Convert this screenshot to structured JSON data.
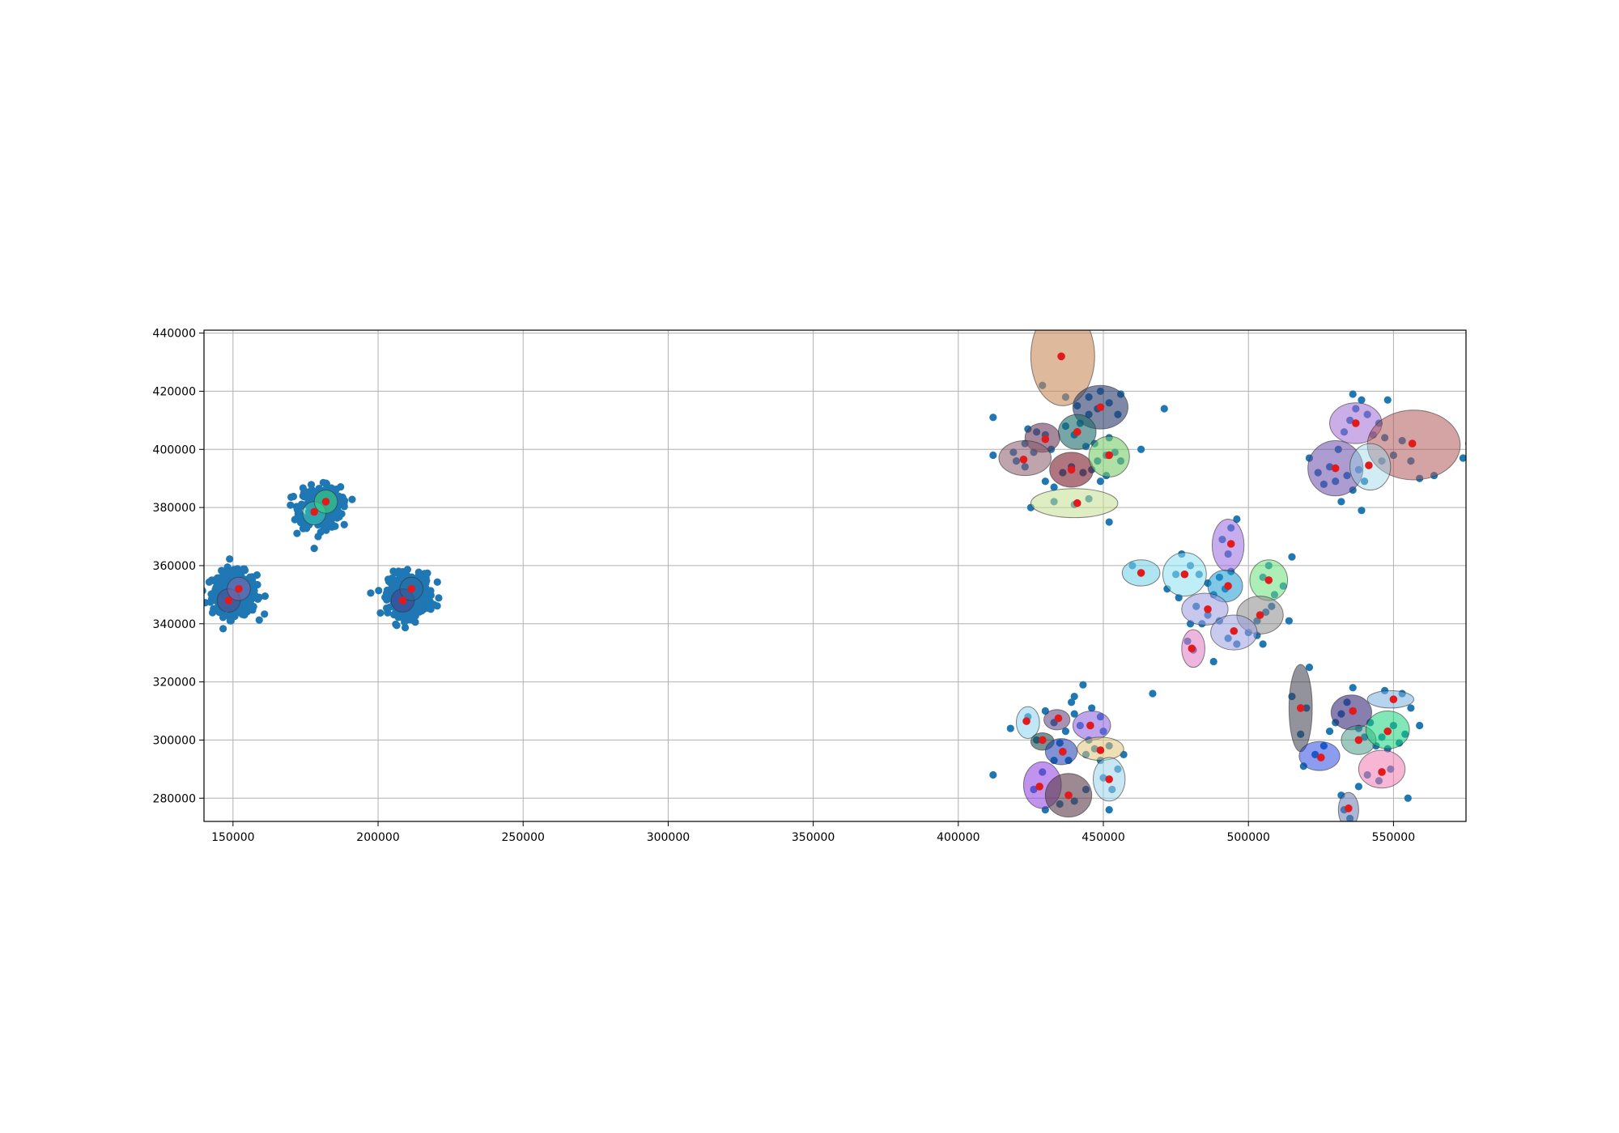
{
  "chart_data": {
    "type": "scatter",
    "title": "",
    "xlabel": "",
    "ylabel": "",
    "xlim": [
      140000,
      575000
    ],
    "ylim": [
      272000,
      441000
    ],
    "grid": true,
    "x_ticks": [
      150000,
      200000,
      250000,
      300000,
      350000,
      400000,
      450000,
      500000,
      550000
    ],
    "y_ticks": [
      280000,
      300000,
      320000,
      340000,
      360000,
      380000,
      400000,
      420000,
      440000
    ],
    "x_tick_labels": [
      "150000",
      "200000",
      "250000",
      "300000",
      "350000",
      "400000",
      "450000",
      "500000",
      "550000"
    ],
    "y_tick_labels": [
      "280000",
      "300000",
      "320000",
      "340000",
      "360000",
      "380000",
      "400000",
      "420000",
      "440000"
    ],
    "point_color": "#1f77b4",
    "center_color": "#e31a1c",
    "dense_clusters": [
      {
        "cx": 150500,
        "cy": 350500,
        "sx": 3800,
        "sy": 3600,
        "n": 420
      },
      {
        "cx": 180000,
        "cy": 380000,
        "sx": 3500,
        "sy": 3500,
        "n": 380
      },
      {
        "cx": 211000,
        "cy": 350000,
        "sx": 3600,
        "sy": 3600,
        "n": 400
      }
    ],
    "scatter_points": [
      [
        412000,
        411000
      ],
      [
        412000,
        398000
      ],
      [
        423000,
        402000
      ],
      [
        424000,
        407000
      ],
      [
        427000,
        406000
      ],
      [
        430000,
        405000
      ],
      [
        432000,
        400000
      ],
      [
        426000,
        399000
      ],
      [
        420000,
        396000
      ],
      [
        423000,
        394000
      ],
      [
        419000,
        399000
      ],
      [
        425000,
        380000
      ],
      [
        430000,
        389000
      ],
      [
        433000,
        387000
      ],
      [
        436000,
        392000
      ],
      [
        439000,
        394000
      ],
      [
        443000,
        392000
      ],
      [
        446000,
        393000
      ],
      [
        449000,
        389000
      ],
      [
        451000,
        391000
      ],
      [
        448000,
        396000
      ],
      [
        451000,
        398000
      ],
      [
        454000,
        399000
      ],
      [
        456000,
        396000
      ],
      [
        452000,
        404000
      ],
      [
        447000,
        402000
      ],
      [
        444000,
        401000
      ],
      [
        440000,
        405000
      ],
      [
        437000,
        408000
      ],
      [
        442000,
        409000
      ],
      [
        445000,
        412000
      ],
      [
        448000,
        414000
      ],
      [
        452000,
        416000
      ],
      [
        455000,
        412000
      ],
      [
        456000,
        419000
      ],
      [
        449000,
        420000
      ],
      [
        445000,
        418000
      ],
      [
        441000,
        415000
      ],
      [
        463000,
        400000
      ],
      [
        471000,
        414000
      ],
      [
        429000,
        422000
      ],
      [
        437000,
        418000
      ],
      [
        452000,
        375000
      ],
      [
        445000,
        383000
      ],
      [
        440000,
        381000
      ],
      [
        433000,
        382000
      ],
      [
        475000,
        357000
      ],
      [
        477000,
        364000
      ],
      [
        472000,
        352000
      ],
      [
        480000,
        360000
      ],
      [
        483000,
        357000
      ],
      [
        476000,
        349000
      ],
      [
        486000,
        354000
      ],
      [
        488000,
        350000
      ],
      [
        490000,
        356000
      ],
      [
        492000,
        352000
      ],
      [
        494000,
        358000
      ],
      [
        491000,
        369000
      ],
      [
        494000,
        373000
      ],
      [
        496000,
        376000
      ],
      [
        493000,
        364000
      ],
      [
        482000,
        346000
      ],
      [
        486000,
        343000
      ],
      [
        480000,
        340000
      ],
      [
        484000,
        340000
      ],
      [
        490000,
        341000
      ],
      [
        493000,
        335000
      ],
      [
        496000,
        333000
      ],
      [
        500000,
        337000
      ],
      [
        503000,
        341000
      ],
      [
        506000,
        344000
      ],
      [
        508000,
        346000
      ],
      [
        505000,
        333000
      ],
      [
        503000,
        336000
      ],
      [
        509000,
        350000
      ],
      [
        505000,
        356000
      ],
      [
        507000,
        360000
      ],
      [
        512000,
        353000
      ],
      [
        514000,
        341000
      ],
      [
        515000,
        363000
      ],
      [
        488000,
        327000
      ],
      [
        481000,
        331000
      ],
      [
        479000,
        334000
      ],
      [
        467000,
        316000
      ],
      [
        460000,
        360000
      ],
      [
        521000,
        397000
      ],
      [
        524000,
        392000
      ],
      [
        526000,
        388000
      ],
      [
        528000,
        394000
      ],
      [
        530000,
        389000
      ],
      [
        532000,
        382000
      ],
      [
        534000,
        391000
      ],
      [
        536000,
        386000
      ],
      [
        538000,
        393000
      ],
      [
        540000,
        389000
      ],
      [
        539000,
        379000
      ],
      [
        531000,
        400000
      ],
      [
        533000,
        406000
      ],
      [
        535000,
        410000
      ],
      [
        537000,
        414000
      ],
      [
        539000,
        417000
      ],
      [
        541000,
        412000
      ],
      [
        543000,
        405000
      ],
      [
        545000,
        409000
      ],
      [
        547000,
        404000
      ],
      [
        550000,
        398000
      ],
      [
        553000,
        403000
      ],
      [
        556000,
        396000
      ],
      [
        559000,
        390000
      ],
      [
        564000,
        391000
      ],
      [
        548000,
        417000
      ],
      [
        536000,
        419000
      ],
      [
        546000,
        396000
      ],
      [
        574000,
        397000
      ],
      [
        576000,
        402000
      ],
      [
        418000,
        304000
      ],
      [
        424000,
        308000
      ],
      [
        427000,
        300000
      ],
      [
        430000,
        310000
      ],
      [
        433000,
        306000
      ],
      [
        435000,
        299000
      ],
      [
        437000,
        303000
      ],
      [
        440000,
        309000
      ],
      [
        442000,
        305000
      ],
      [
        445000,
        300000
      ],
      [
        447000,
        297000
      ],
      [
        450000,
        303000
      ],
      [
        452000,
        298000
      ],
      [
        449000,
        293000
      ],
      [
        444000,
        295000
      ],
      [
        438000,
        293000
      ],
      [
        433000,
        293000
      ],
      [
        429000,
        289000
      ],
      [
        426000,
        283000
      ],
      [
        430000,
        276000
      ],
      [
        435000,
        278000
      ],
      [
        440000,
        279000
      ],
      [
        444000,
        283000
      ],
      [
        450000,
        287000
      ],
      [
        453000,
        283000
      ],
      [
        455000,
        290000
      ],
      [
        452000,
        276000
      ],
      [
        443000,
        319000
      ],
      [
        439000,
        313000
      ],
      [
        446000,
        311000
      ],
      [
        412000,
        288000
      ],
      [
        440000,
        315000
      ],
      [
        449000,
        308000
      ],
      [
        457000,
        295000
      ],
      [
        515000,
        315000
      ],
      [
        518000,
        302000
      ],
      [
        520000,
        311000
      ],
      [
        521000,
        325000
      ],
      [
        523000,
        295000
      ],
      [
        526000,
        298000
      ],
      [
        528000,
        303000
      ],
      [
        530000,
        306000
      ],
      [
        532000,
        309000
      ],
      [
        534000,
        313000
      ],
      [
        536000,
        318000
      ],
      [
        538000,
        304000
      ],
      [
        540000,
        301000
      ],
      [
        542000,
        306000
      ],
      [
        544000,
        298000
      ],
      [
        546000,
        301000
      ],
      [
        548000,
        297000
      ],
      [
        550000,
        305000
      ],
      [
        552000,
        299000
      ],
      [
        554000,
        302000
      ],
      [
        556000,
        311000
      ],
      [
        559000,
        305000
      ],
      [
        547000,
        317000
      ],
      [
        553000,
        316000
      ],
      [
        549000,
        290000
      ],
      [
        545000,
        286000
      ],
      [
        541000,
        288000
      ],
      [
        538000,
        284000
      ],
      [
        532000,
        281000
      ],
      [
        533000,
        276000
      ],
      [
        535000,
        273000
      ],
      [
        555000,
        280000
      ],
      [
        519000,
        291000
      ]
    ],
    "ellipses": [
      {
        "cx": 148500,
        "cy": 348000,
        "rx": 4000,
        "ry": 4000,
        "color": "#5a4a8a",
        "alpha": 0.5
      },
      {
        "cx": 152000,
        "cy": 352000,
        "rx": 4000,
        "ry": 4000,
        "color": "#8a6ab0",
        "alpha": 0.5
      },
      {
        "cx": 178000,
        "cy": 378000,
        "rx": 4000,
        "ry": 4000,
        "color": "#3ac4b0",
        "alpha": 0.6
      },
      {
        "cx": 182000,
        "cy": 382000,
        "rx": 4000,
        "ry": 4000,
        "color": "#3ad47a",
        "alpha": 0.6
      },
      {
        "cx": 208500,
        "cy": 348000,
        "rx": 4000,
        "ry": 4000,
        "color": "#4a3a8a",
        "alpha": 0.5
      },
      {
        "cx": 211500,
        "cy": 352000,
        "rx": 4000,
        "ry": 4000,
        "color": "#2a6aa0",
        "alpha": 0.5
      },
      {
        "cx": 436000,
        "cy": 432000,
        "rx": 11000,
        "ry": 17000,
        "color": "#c98a5a",
        "alpha": 0.6
      },
      {
        "cx": 449000,
        "cy": 414500,
        "rx": 9500,
        "ry": 7500,
        "color": "#2a3a6a",
        "alpha": 0.6
      },
      {
        "cx": 441000,
        "cy": 406000,
        "rx": 6500,
        "ry": 6000,
        "color": "#1a6a6a",
        "alpha": 0.6
      },
      {
        "cx": 429000,
        "cy": 404000,
        "rx": 6000,
        "ry": 5000,
        "color": "#6a3a5a",
        "alpha": 0.6
      },
      {
        "cx": 423000,
        "cy": 397000,
        "rx": 9000,
        "ry": 6000,
        "color": "#8a5a6a",
        "alpha": 0.55
      },
      {
        "cx": 439000,
        "cy": 393000,
        "rx": 7500,
        "ry": 6000,
        "color": "#7a1a2a",
        "alpha": 0.6
      },
      {
        "cx": 452000,
        "cy": 397500,
        "rx": 7000,
        "ry": 7000,
        "color": "#7acc6a",
        "alpha": 0.6
      },
      {
        "cx": 440000,
        "cy": 381500,
        "rx": 15000,
        "ry": 5000,
        "color": "#c4e090",
        "alpha": 0.55
      },
      {
        "cx": 463000,
        "cy": 357500,
        "rx": 6500,
        "ry": 4500,
        "color": "#7ad4e8",
        "alpha": 0.6
      },
      {
        "cx": 478000,
        "cy": 357000,
        "rx": 7500,
        "ry": 7500,
        "color": "#8ae0f0",
        "alpha": 0.55
      },
      {
        "cx": 493000,
        "cy": 367000,
        "rx": 5500,
        "ry": 9000,
        "color": "#9a6ae0",
        "alpha": 0.55
      },
      {
        "cx": 507000,
        "cy": 355000,
        "rx": 6500,
        "ry": 7000,
        "color": "#6ae07a",
        "alpha": 0.55
      },
      {
        "cx": 492000,
        "cy": 353000,
        "rx": 6000,
        "ry": 5500,
        "color": "#1a9ad4",
        "alpha": 0.55
      },
      {
        "cx": 485000,
        "cy": 345000,
        "rx": 8000,
        "ry": 5500,
        "color": "#9a9ae0",
        "alpha": 0.55
      },
      {
        "cx": 504000,
        "cy": 343000,
        "rx": 8000,
        "ry": 6500,
        "color": "#8a8a8a",
        "alpha": 0.55
      },
      {
        "cx": 495000,
        "cy": 337000,
        "rx": 8000,
        "ry": 6000,
        "color": "#9aa0e0",
        "alpha": 0.55
      },
      {
        "cx": 481000,
        "cy": 331500,
        "rx": 4000,
        "ry": 6500,
        "color": "#e07ac4",
        "alpha": 0.55
      },
      {
        "cx": 530000,
        "cy": 393500,
        "rx": 9500,
        "ry": 9500,
        "color": "#6a4aaa",
        "alpha": 0.55
      },
      {
        "cx": 537000,
        "cy": 409000,
        "rx": 9000,
        "ry": 7000,
        "color": "#a06ad4",
        "alpha": 0.55
      },
      {
        "cx": 557000,
        "cy": 401500,
        "rx": 16000,
        "ry": 12000,
        "color": "#b05a5a",
        "alpha": 0.55
      },
      {
        "cx": 542000,
        "cy": 394000,
        "rx": 7000,
        "ry": 8000,
        "color": "#9ad4e8",
        "alpha": 0.45
      },
      {
        "cx": 424000,
        "cy": 306000,
        "rx": 4000,
        "ry": 5500,
        "color": "#8ad4f0",
        "alpha": 0.55
      },
      {
        "cx": 434000,
        "cy": 307000,
        "rx": 4500,
        "ry": 3500,
        "color": "#5a3a7a",
        "alpha": 0.55
      },
      {
        "cx": 446000,
        "cy": 305000,
        "rx": 6500,
        "ry": 5000,
        "color": "#8a5ae0",
        "alpha": 0.55
      },
      {
        "cx": 429000,
        "cy": 299500,
        "rx": 4000,
        "ry": 3000,
        "color": "#1a4a4a",
        "alpha": 0.6
      },
      {
        "cx": 435500,
        "cy": 296000,
        "rx": 5500,
        "ry": 4500,
        "color": "#1a3ab0",
        "alpha": 0.55
      },
      {
        "cx": 449000,
        "cy": 297000,
        "rx": 8000,
        "ry": 4000,
        "color": "#e0c47a",
        "alpha": 0.55
      },
      {
        "cx": 452000,
        "cy": 286500,
        "rx": 5500,
        "ry": 7500,
        "color": "#9ad4e8",
        "alpha": 0.55
      },
      {
        "cx": 429000,
        "cy": 284500,
        "rx": 6500,
        "ry": 8000,
        "color": "#8a3ae0",
        "alpha": 0.55
      },
      {
        "cx": 438000,
        "cy": 281000,
        "rx": 8000,
        "ry": 7500,
        "color": "#5a3a4a",
        "alpha": 0.6
      },
      {
        "cx": 518000,
        "cy": 311000,
        "rx": 4000,
        "ry": 15000,
        "color": "#3a3a4a",
        "alpha": 0.55
      },
      {
        "cx": 535500,
        "cy": 309500,
        "rx": 7000,
        "ry": 6000,
        "color": "#3a2a7a",
        "alpha": 0.6
      },
      {
        "cx": 549000,
        "cy": 314000,
        "rx": 8000,
        "ry": 3000,
        "color": "#7ab0e0",
        "alpha": 0.55
      },
      {
        "cx": 524500,
        "cy": 294500,
        "rx": 7000,
        "ry": 5000,
        "color": "#1a3ae0",
        "alpha": 0.5
      },
      {
        "cx": 538000,
        "cy": 300000,
        "rx": 6000,
        "ry": 5000,
        "color": "#4a9a8a",
        "alpha": 0.55
      },
      {
        "cx": 548000,
        "cy": 303500,
        "rx": 7500,
        "ry": 6500,
        "color": "#1ad47a",
        "alpha": 0.55
      },
      {
        "cx": 546000,
        "cy": 290000,
        "rx": 8000,
        "ry": 6500,
        "color": "#f07ab0",
        "alpha": 0.55
      },
      {
        "cx": 534500,
        "cy": 276000,
        "rx": 3500,
        "ry": 6000,
        "color": "#6a7ab0",
        "alpha": 0.55
      }
    ],
    "centers": [
      [
        148500,
        348000
      ],
      [
        152000,
        352000
      ],
      [
        178000,
        378500
      ],
      [
        182000,
        382000
      ],
      [
        208500,
        348000
      ],
      [
        211500,
        352000
      ],
      [
        435500,
        432000
      ],
      [
        449000,
        414500
      ],
      [
        441000,
        406000
      ],
      [
        430000,
        403500
      ],
      [
        422500,
        396500
      ],
      [
        439000,
        393000
      ],
      [
        452000,
        398000
      ],
      [
        441000,
        381500
      ],
      [
        463000,
        357500
      ],
      [
        478000,
        357000
      ],
      [
        494000,
        367500
      ],
      [
        507000,
        355000
      ],
      [
        493000,
        353000
      ],
      [
        486000,
        345000
      ],
      [
        504000,
        343000
      ],
      [
        495000,
        337500
      ],
      [
        480500,
        331500
      ],
      [
        530000,
        393500
      ],
      [
        537000,
        409000
      ],
      [
        556500,
        402000
      ],
      [
        541500,
        394500
      ],
      [
        423500,
        306500
      ],
      [
        434500,
        307500
      ],
      [
        445500,
        305000
      ],
      [
        429000,
        300000
      ],
      [
        436000,
        296000
      ],
      [
        449000,
        296500
      ],
      [
        452000,
        286500
      ],
      [
        428000,
        284000
      ],
      [
        438000,
        281000
      ],
      [
        518000,
        311000
      ],
      [
        536000,
        310000
      ],
      [
        550000,
        314000
      ],
      [
        525000,
        294000
      ],
      [
        538000,
        300000
      ],
      [
        548000,
        303000
      ],
      [
        546000,
        289000
      ],
      [
        534500,
        276500
      ]
    ]
  }
}
